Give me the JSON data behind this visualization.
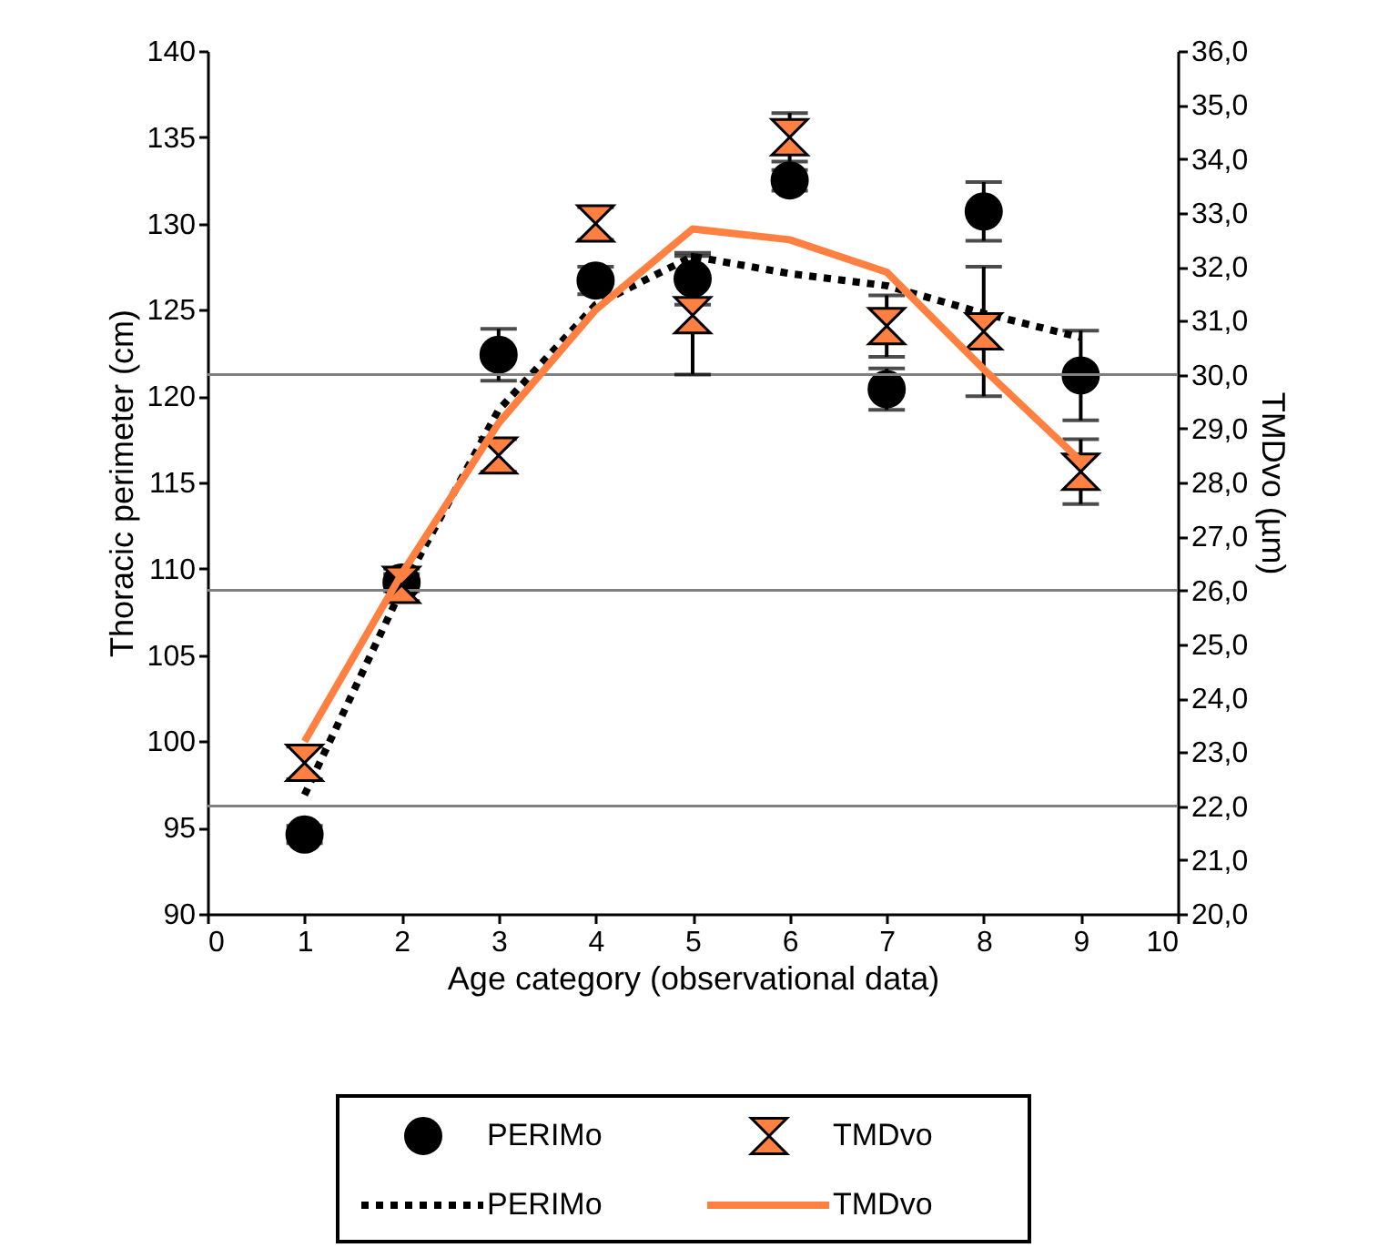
{
  "chart_data": {
    "type": "scatter",
    "xlabel": "Age category (observational data)",
    "ylabel": "Thoracic perimeter (cm)",
    "y2label": "TMDvo (µm)",
    "x": [
      1,
      2,
      3,
      4,
      5,
      6,
      7,
      8,
      9
    ],
    "xlim": [
      0,
      10
    ],
    "xticks": [
      0,
      1,
      2,
      3,
      4,
      5,
      6,
      7,
      8,
      9,
      10
    ],
    "ylim": [
      90,
      140
    ],
    "yticks": [
      90,
      95,
      100,
      105,
      110,
      115,
      120,
      125,
      130,
      135,
      140
    ],
    "y2lim": [
      20,
      36
    ],
    "y2ticks": [
      {
        "value": 20,
        "label": "20,0"
      },
      {
        "value": 21,
        "label": "21,0"
      },
      {
        "value": 22,
        "label": "22,0"
      },
      {
        "value": 23,
        "label": "23,0"
      },
      {
        "value": 24,
        "label": "24,0"
      },
      {
        "value": 25,
        "label": "25,0"
      },
      {
        "value": 26,
        "label": "26,0"
      },
      {
        "value": 27,
        "label": "27,0"
      },
      {
        "value": 28,
        "label": "28,0"
      },
      {
        "value": 29,
        "label": "29,0"
      },
      {
        "value": 30,
        "label": "30,0"
      },
      {
        "value": 31,
        "label": "31,0"
      },
      {
        "value": 32,
        "label": "32,0"
      },
      {
        "value": 33,
        "label": "33,0"
      },
      {
        "value": 34,
        "label": "34,0"
      },
      {
        "value": 35,
        "label": "35,0"
      },
      {
        "value": 36,
        "label": "36,0"
      }
    ],
    "grid": false,
    "legend": "bottom",
    "ref_lines": [
      {
        "axis": "y2",
        "value": 22,
        "color": "#808080"
      },
      {
        "axis": "y2",
        "value": 26,
        "color": "#808080"
      },
      {
        "axis": "y2",
        "value": 30,
        "color": "#808080"
      }
    ],
    "series": [
      {
        "name": "PERIMo",
        "color": "#000000",
        "marker": "circle",
        "values": [
          94.6,
          109.2,
          122.4,
          126.7,
          126.8,
          132.5,
          120.4,
          130.7,
          121.2
        ],
        "errors": [
          0.5,
          0.5,
          1.5,
          0.8,
          1.5,
          0.6,
          1.2,
          1.7,
          2.6
        ]
      },
      {
        "name": "TMDvo",
        "color": "#ff8040",
        "axis": "y2",
        "values": [
          22.8,
          26.1,
          28.5,
          32.8,
          31.1,
          34.4,
          30.9,
          30.8,
          28.2
        ],
        "errors": [
          0.3,
          0.3,
          0.3,
          0.3,
          1.1,
          0.45,
          0.57,
          1.2,
          0.6
        ]
      },
      {
        "name": "PERIMo",
        "type": "line",
        "color": "#000000",
        "line_style": "dotted",
        "values": [
          96.9,
          108.8,
          119.2,
          125.3,
          128.1,
          127.1,
          126.4,
          124.8,
          123.4
        ]
      },
      {
        "name": "TMDvo",
        "type": "line",
        "color": "#ff8040",
        "line_style": "solid",
        "axis": "y2",
        "values": [
          23.2,
          26.3,
          29.1,
          31.2,
          32.7,
          32.5,
          31.9,
          30.1,
          28.4
        ]
      }
    ]
  }
}
